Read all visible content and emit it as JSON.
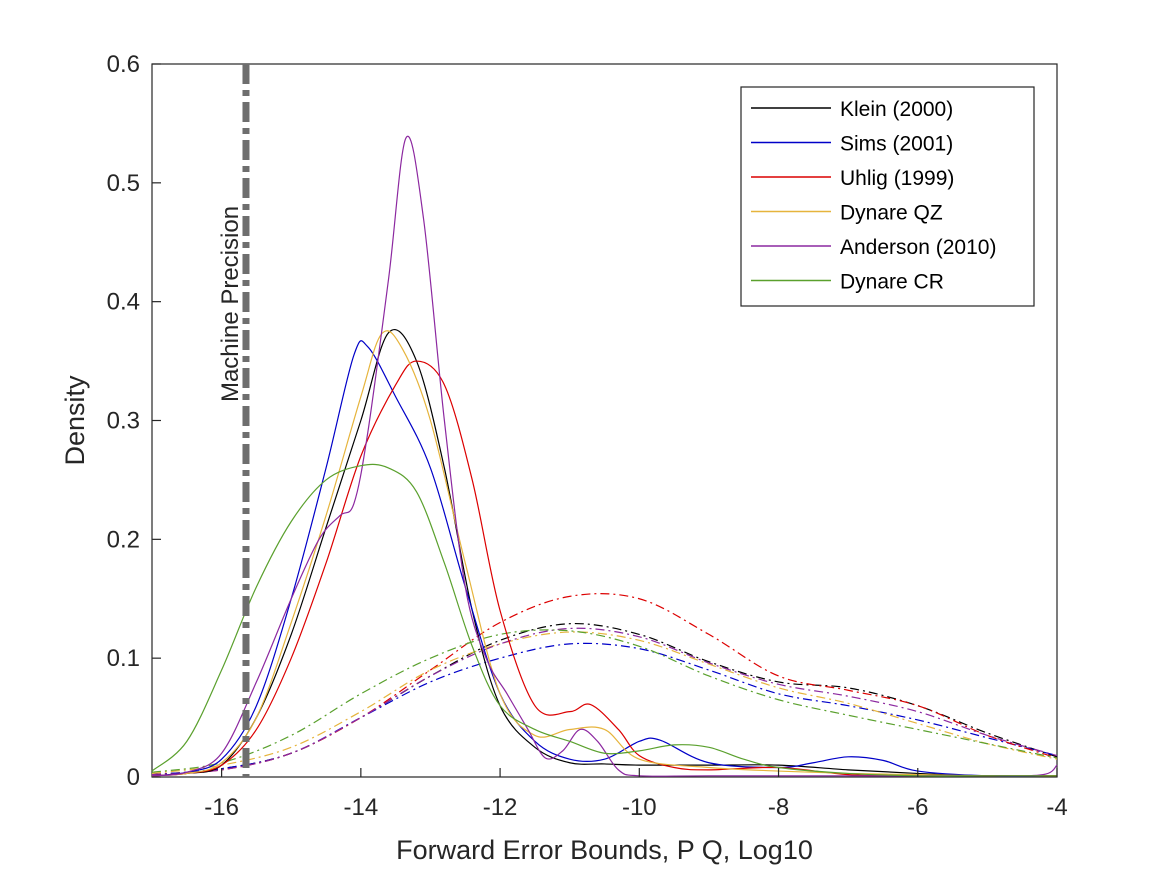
{
  "chart_data": {
    "type": "line",
    "xlabel": "Forward Error Bounds, P Q,  Log10",
    "ylabel": "Density",
    "xlim": [
      -17,
      -4
    ],
    "ylim": [
      0,
      0.6
    ],
    "xticks": [
      "-16",
      "-14",
      "-12",
      "-10",
      "-8",
      "-6",
      "-4"
    ],
    "yticks": [
      "0",
      "0.1",
      "0.2",
      "0.3",
      "0.4",
      "0.5",
      "0.6"
    ],
    "grid": false,
    "legend_position": "top-right",
    "annotation": {
      "label": "Machine Precision",
      "x": -15.65,
      "color": "#6e6e6e"
    },
    "series": [
      {
        "name": "Klein (2000)",
        "color": "#000000",
        "x": [
          -17,
          -16.5,
          -16,
          -15.5,
          -15,
          -14.5,
          -14,
          -13.6,
          -13.2,
          -12.8,
          -12.4,
          -12,
          -11.5,
          -11,
          -10.5,
          -10,
          -9,
          -8,
          -7,
          -6,
          -5,
          -4
        ],
        "y": [
          0.001,
          0.003,
          0.01,
          0.05,
          0.12,
          0.21,
          0.3,
          0.374,
          0.35,
          0.26,
          0.14,
          0.06,
          0.025,
          0.012,
          0.011,
          0.01,
          0.01,
          0.01,
          0.006,
          0.003,
          0.001,
          0.001
        ]
      },
      {
        "name": "Sims (2001)",
        "color": "#0000c8",
        "x": [
          -17,
          -16.5,
          -16,
          -15.5,
          -15,
          -14.5,
          -14.1,
          -13.9,
          -13.5,
          -13,
          -12.5,
          -12,
          -11.5,
          -11,
          -10.5,
          -10,
          -9.7,
          -9,
          -8,
          -7.5,
          -7,
          -6.5,
          -6,
          -5,
          -4
        ],
        "y": [
          0.001,
          0.004,
          0.015,
          0.06,
          0.15,
          0.26,
          0.355,
          0.362,
          0.32,
          0.26,
          0.16,
          0.07,
          0.03,
          0.015,
          0.015,
          0.03,
          0.031,
          0.012,
          0.008,
          0.012,
          0.017,
          0.014,
          0.005,
          0.001,
          0.001
        ]
      },
      {
        "name": "Uhlig (1999)",
        "color": "#dc0000",
        "x": [
          -17,
          -16.5,
          -16,
          -15.5,
          -15,
          -14.5,
          -14,
          -13.5,
          -13.2,
          -12.8,
          -12.4,
          -12,
          -11.5,
          -11,
          -10.7,
          -10.3,
          -10,
          -9.5,
          -9,
          -8,
          -7,
          -6,
          -5,
          -4
        ],
        "y": [
          0.001,
          0.003,
          0.01,
          0.04,
          0.1,
          0.18,
          0.27,
          0.33,
          0.35,
          0.33,
          0.25,
          0.14,
          0.06,
          0.055,
          0.061,
          0.04,
          0.018,
          0.008,
          0.006,
          0.008,
          0.002,
          0.001,
          0.001,
          0.001
        ]
      },
      {
        "name": "Dynare QZ",
        "color": "#e6b43c",
        "x": [
          -17,
          -16.5,
          -16,
          -15.5,
          -15,
          -14.5,
          -14,
          -13.7,
          -13.4,
          -13,
          -12.5,
          -12,
          -11.5,
          -11,
          -10.5,
          -10,
          -9,
          -8,
          -7,
          -6,
          -5,
          -4
        ],
        "y": [
          0.001,
          0.003,
          0.012,
          0.05,
          0.13,
          0.22,
          0.32,
          0.373,
          0.36,
          0.3,
          0.18,
          0.07,
          0.035,
          0.04,
          0.04,
          0.015,
          0.008,
          0.005,
          0.003,
          0.002,
          0.001,
          0.001
        ]
      },
      {
        "name": "Anderson (2010)",
        "color": "#8c28a0",
        "x": [
          -17,
          -16.5,
          -16,
          -15.5,
          -15,
          -14.6,
          -14.3,
          -14.1,
          -13.9,
          -13.6,
          -13.35,
          -13.1,
          -12.8,
          -12.5,
          -12.2,
          -11.9,
          -11.6,
          -11.35,
          -11.1,
          -10.85,
          -10.6,
          -10.3,
          -10,
          -9,
          -7,
          -5,
          -4.2,
          -4
        ],
        "y": [
          0.001,
          0.004,
          0.02,
          0.08,
          0.15,
          0.2,
          0.22,
          0.23,
          0.29,
          0.42,
          0.538,
          0.47,
          0.3,
          0.16,
          0.1,
          0.07,
          0.04,
          0.016,
          0.022,
          0.04,
          0.03,
          0.006,
          0.001,
          0.001,
          0.001,
          0.001,
          0.002,
          0.01
        ]
      },
      {
        "name": "Dynare CR",
        "color": "#5aa02d",
        "x": [
          -17,
          -16.5,
          -16,
          -15.5,
          -15,
          -14.5,
          -14,
          -13.6,
          -13.2,
          -12.8,
          -12.4,
          -12,
          -11.5,
          -11,
          -10.5,
          -10,
          -9.5,
          -9,
          -8.5,
          -8,
          -7,
          -6,
          -5,
          -4
        ],
        "y": [
          0.005,
          0.03,
          0.09,
          0.16,
          0.215,
          0.25,
          0.262,
          0.26,
          0.24,
          0.18,
          0.11,
          0.06,
          0.04,
          0.03,
          0.02,
          0.022,
          0.027,
          0.025,
          0.015,
          0.008,
          0.003,
          0.001,
          0.001,
          0.001
        ]
      }
    ],
    "secondary_curves": [
      {
        "color": "#000000",
        "x": [
          -17,
          -16,
          -15,
          -14,
          -13,
          -12,
          -11,
          -10,
          -9,
          -8,
          -7,
          -6,
          -5,
          -4
        ],
        "y": [
          0.002,
          0.007,
          0.02,
          0.05,
          0.085,
          0.115,
          0.129,
          0.12,
          0.097,
          0.08,
          0.075,
          0.06,
          0.037,
          0.017
        ]
      },
      {
        "color": "#0000c8",
        "x": [
          -17,
          -16,
          -15,
          -14,
          -13,
          -12,
          -11,
          -10,
          -9,
          -8,
          -7,
          -6,
          -5,
          -4
        ],
        "y": [
          0.002,
          0.007,
          0.02,
          0.05,
          0.08,
          0.1,
          0.112,
          0.108,
          0.09,
          0.07,
          0.06,
          0.048,
          0.033,
          0.018
        ]
      },
      {
        "color": "#dc0000",
        "x": [
          -17,
          -16,
          -15,
          -14,
          -13,
          -12,
          -11,
          -10,
          -9,
          -8,
          -7,
          -6,
          -5,
          -4
        ],
        "y": [
          0.002,
          0.006,
          0.02,
          0.05,
          0.09,
          0.13,
          0.152,
          0.15,
          0.12,
          0.085,
          0.073,
          0.06,
          0.035,
          0.016
        ]
      },
      {
        "color": "#e6b43c",
        "x": [
          -17,
          -16,
          -15,
          -14,
          -13,
          -12,
          -11,
          -10,
          -9,
          -8,
          -7,
          -6,
          -5,
          -4
        ],
        "y": [
          0.003,
          0.01,
          0.025,
          0.055,
          0.09,
          0.112,
          0.122,
          0.115,
          0.095,
          0.075,
          0.062,
          0.045,
          0.028,
          0.015
        ]
      },
      {
        "color": "#8c28a0",
        "x": [
          -17,
          -16,
          -15,
          -14,
          -13,
          -12,
          -11,
          -10,
          -9,
          -8,
          -7,
          -6,
          -5,
          -4
        ],
        "y": [
          0.002,
          0.006,
          0.02,
          0.05,
          0.085,
          0.112,
          0.125,
          0.118,
          0.096,
          0.078,
          0.068,
          0.055,
          0.035,
          0.018
        ]
      },
      {
        "color": "#5aa02d",
        "x": [
          -17,
          -16,
          -15,
          -14,
          -13,
          -12,
          -11,
          -10,
          -9,
          -8,
          -7,
          -6,
          -5,
          -4
        ],
        "y": [
          0.004,
          0.012,
          0.035,
          0.07,
          0.1,
          0.12,
          0.123,
          0.11,
          0.085,
          0.065,
          0.052,
          0.04,
          0.028,
          0.016
        ]
      }
    ]
  }
}
